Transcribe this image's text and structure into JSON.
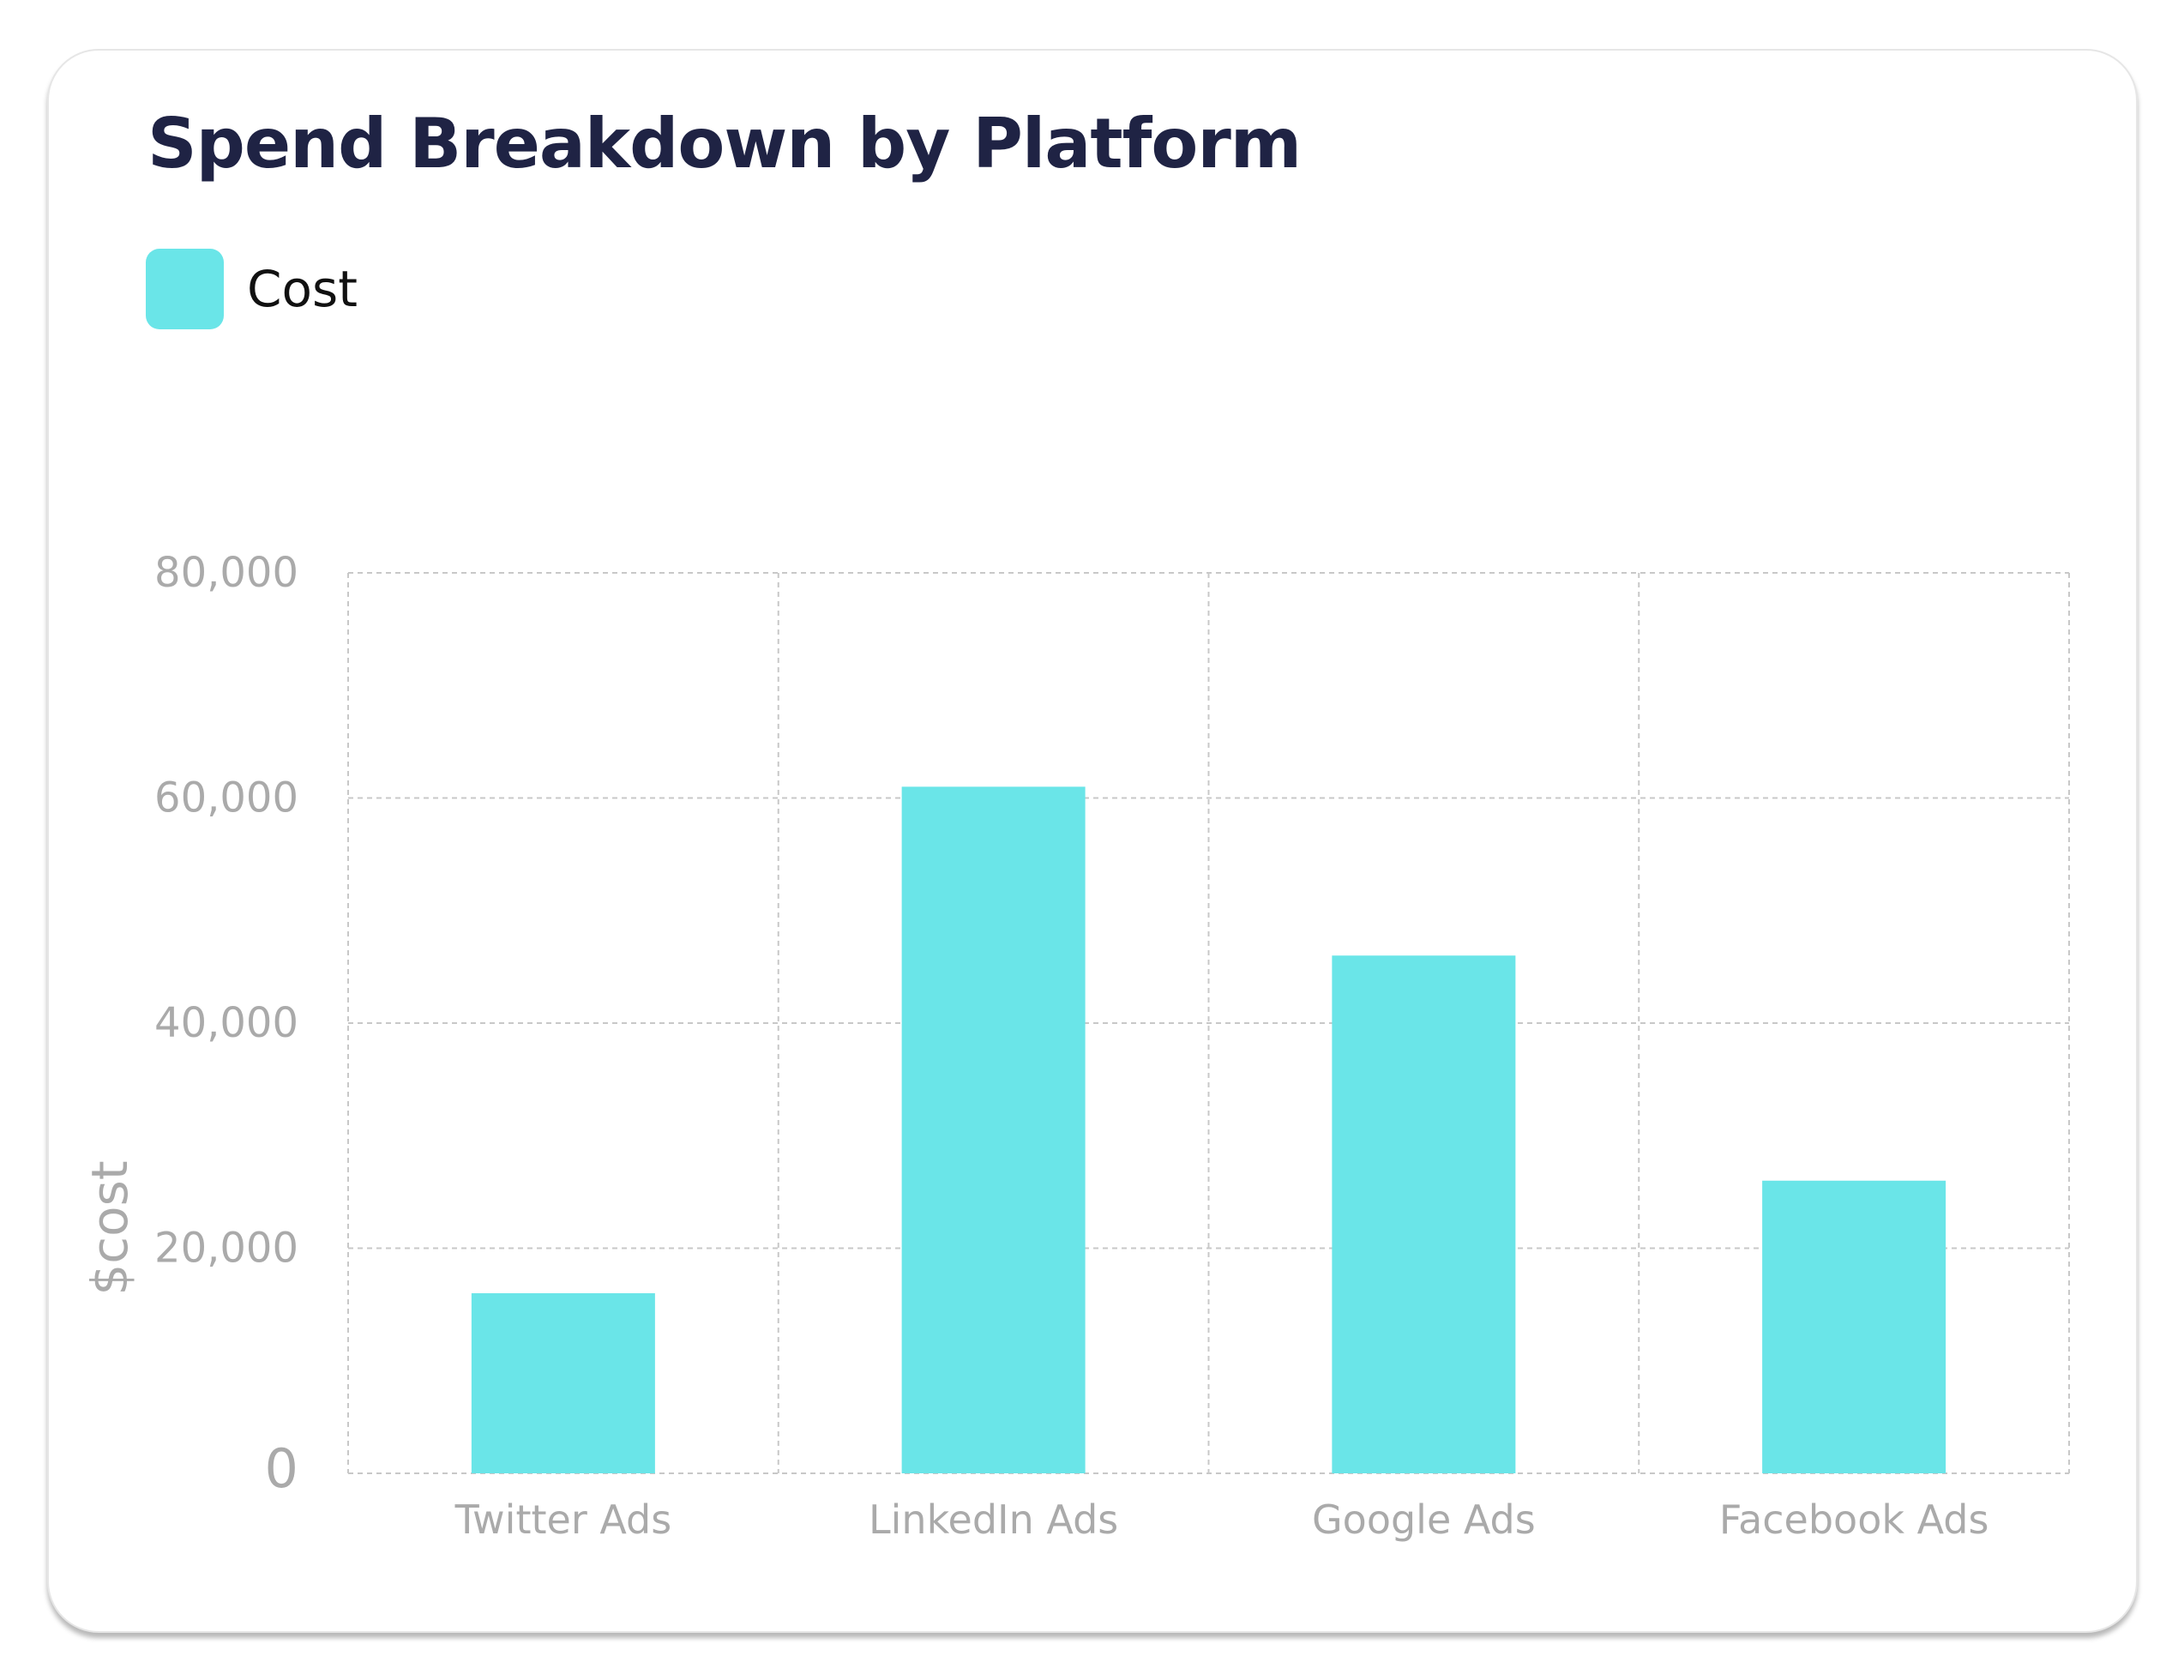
{
  "chart_data": {
    "type": "bar",
    "title": "Spend Breakdown by Platform",
    "categories": [
      "Twitter Ads",
      "LinkedIn Ads",
      "Google Ads",
      "Facebook Ads"
    ],
    "series": [
      {
        "name": "Cost",
        "values": [
          16000,
          61000,
          46000,
          26000
        ]
      }
    ],
    "xlabel": "",
    "ylabel": "$cost",
    "ylim": [
      0,
      80000
    ],
    "yticks": [
      "0",
      "20,000",
      "40,000",
      "60,000",
      "80,000"
    ],
    "grid": true,
    "legend": "top-left",
    "colors": {
      "bar": "#6ae5e8",
      "title": "#1f2344",
      "axis_text": "#aaaaaa",
      "grid": "#c8c8c8"
    }
  }
}
